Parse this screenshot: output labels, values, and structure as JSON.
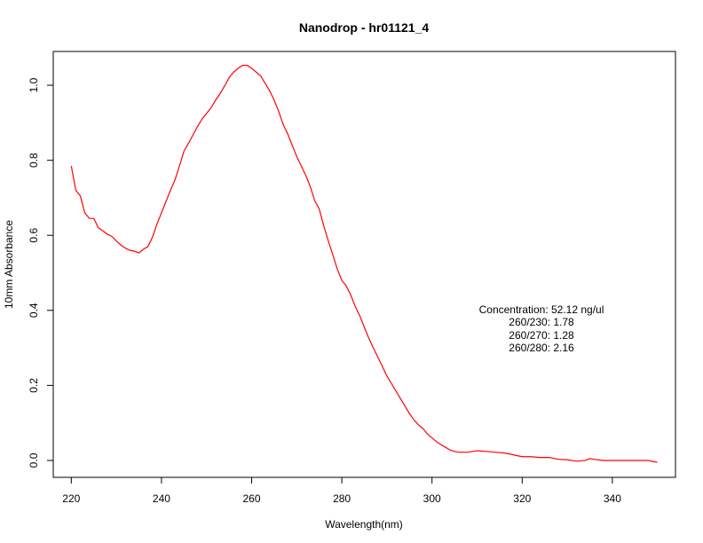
{
  "chart_data": {
    "type": "line",
    "title": "Nanodrop - hr01121_4",
    "xlabel": "Wavelength(nm)",
    "ylabel": "10mm Absorbance",
    "xlim": [
      216,
      354
    ],
    "ylim": [
      -0.045,
      1.09
    ],
    "xticks": [
      220,
      240,
      260,
      280,
      300,
      320,
      340
    ],
    "yticks": [
      0.0,
      0.2,
      0.4,
      0.6,
      0.8,
      1.0
    ],
    "xtick_labels": [
      "220",
      "240",
      "260",
      "280",
      "300",
      "320",
      "340"
    ],
    "ytick_labels": [
      "0.0",
      "0.2",
      "0.4",
      "0.6",
      "0.8",
      "1.0"
    ],
    "grid": false,
    "series": [
      {
        "color": "#ff0000",
        "x": [
          220,
          221,
          222,
          223,
          224,
          225,
          226,
          227,
          228,
          229,
          230,
          231,
          232,
          233,
          234,
          235,
          236,
          237,
          238,
          239,
          240,
          241,
          242,
          243,
          244,
          245,
          246,
          247,
          248,
          249,
          250,
          251,
          252,
          253,
          254,
          255,
          256,
          257,
          258,
          259,
          260,
          261,
          262,
          263,
          264,
          265,
          266,
          267,
          268,
          269,
          270,
          271,
          272,
          273,
          274,
          275,
          276,
          277,
          278,
          279,
          280,
          281,
          282,
          283,
          284,
          285,
          286,
          287,
          288,
          289,
          290,
          291,
          292,
          293,
          294,
          295,
          296,
          297,
          298,
          299,
          300,
          301,
          302,
          303,
          304,
          305,
          306,
          307,
          308,
          309,
          310,
          312,
          314,
          316,
          318,
          320,
          322,
          324,
          325,
          326,
          328,
          330,
          332,
          334,
          335,
          336,
          338,
          340,
          342,
          344,
          346,
          348,
          349,
          350
        ],
        "y": [
          0.785,
          0.72,
          0.705,
          0.66,
          0.645,
          0.645,
          0.62,
          0.612,
          0.603,
          0.597,
          0.585,
          0.574,
          0.566,
          0.56,
          0.558,
          0.553,
          0.563,
          0.57,
          0.595,
          0.63,
          0.66,
          0.69,
          0.72,
          0.748,
          0.785,
          0.825,
          0.845,
          0.868,
          0.89,
          0.91,
          0.925,
          0.94,
          0.96,
          0.978,
          0.998,
          1.02,
          1.035,
          1.045,
          1.053,
          1.053,
          1.045,
          1.035,
          1.025,
          1.005,
          0.985,
          0.96,
          0.93,
          0.895,
          0.87,
          0.84,
          0.81,
          0.785,
          0.76,
          0.73,
          0.692,
          0.67,
          0.625,
          0.585,
          0.548,
          0.51,
          0.48,
          0.465,
          0.44,
          0.41,
          0.385,
          0.355,
          0.325,
          0.3,
          0.275,
          0.25,
          0.225,
          0.205,
          0.185,
          0.165,
          0.145,
          0.125,
          0.108,
          0.095,
          0.085,
          0.07,
          0.06,
          0.05,
          0.042,
          0.035,
          0.028,
          0.024,
          0.022,
          0.022,
          0.022,
          0.024,
          0.026,
          0.024,
          0.022,
          0.02,
          0.015,
          0.01,
          0.01,
          0.008,
          0.008,
          0.008,
          0.003,
          0.002,
          -0.002,
          0.0,
          0.005,
          0.003,
          0.0,
          0.0,
          0.0,
          0.0,
          0.0,
          0.0,
          -0.003,
          -0.005
        ]
      }
    ],
    "annotations": [
      "Concentration: 52.12 ng/ul",
      "260/230: 1.78",
      "260/270: 1.28",
      "260/280: 2.16"
    ]
  }
}
